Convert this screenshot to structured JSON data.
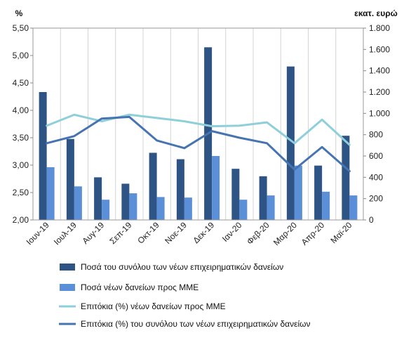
{
  "chart_data": {
    "type": "bar",
    "left_axis_unit": "%",
    "right_axis_unit": "εκατ. ευρώ",
    "categories": [
      "Ιουν-19",
      "Ιουλ-19",
      "Αυγ-19",
      "Σεπ-19",
      "Οκτ-19",
      "Νοε-19",
      "Δεκ-19",
      "Ιαν-20",
      "Φεβ-20",
      "Μαρ-20",
      "Απρ-20",
      "Μαϊ-20"
    ],
    "left_axis": {
      "min": 2.0,
      "max": 5.5,
      "ticks": [
        2.0,
        2.5,
        3.0,
        3.5,
        4.0,
        4.5,
        5.0,
        5.5
      ],
      "tick_labels": [
        "2,00",
        "2,50",
        "3,00",
        "3,50",
        "4,00",
        "4,50",
        "5,00",
        "5,50"
      ]
    },
    "right_axis": {
      "min": 0,
      "max": 1800,
      "ticks": [
        0,
        200,
        400,
        600,
        800,
        1000,
        1200,
        1400,
        1600,
        1800
      ],
      "tick_labels": [
        "0",
        "200",
        "400",
        "600",
        "800",
        "1.000",
        "1.200",
        "1.400",
        "1.600",
        "1.800"
      ]
    },
    "grid": "vertical category dividers",
    "series": [
      {
        "name": "Ποσά του συνόλου των νέων επιχειρηματικών δανείων",
        "kind": "bar",
        "axis": "right",
        "color": "#2e5385",
        "values": [
          1200,
          760,
          400,
          340,
          630,
          570,
          1620,
          480,
          410,
          1440,
          510,
          790
        ]
      },
      {
        "name": "Ποσά νέων δανείων προς ΜΜΕ",
        "kind": "bar",
        "axis": "right",
        "color": "#5b8fd8",
        "values": [
          495,
          315,
          190,
          250,
          215,
          210,
          600,
          190,
          230,
          510,
          265,
          230
        ]
      },
      {
        "name": "Επιτόκια (%) νέων δανείων προς ΜΜΕ",
        "kind": "line",
        "axis": "left",
        "color": "#8ecfda",
        "values": [
          3.72,
          3.92,
          3.8,
          3.92,
          3.86,
          3.8,
          3.71,
          3.72,
          3.78,
          3.4,
          3.83,
          3.37
        ]
      },
      {
        "name": "Επιτόκια (%) του συνόλου των νέων επιχειρηματικών δανείων",
        "kind": "line",
        "axis": "left",
        "color": "#4674b0",
        "values": [
          3.4,
          3.53,
          3.85,
          3.88,
          3.45,
          3.31,
          3.62,
          3.5,
          3.4,
          2.92,
          3.33,
          2.89
        ]
      }
    ]
  }
}
